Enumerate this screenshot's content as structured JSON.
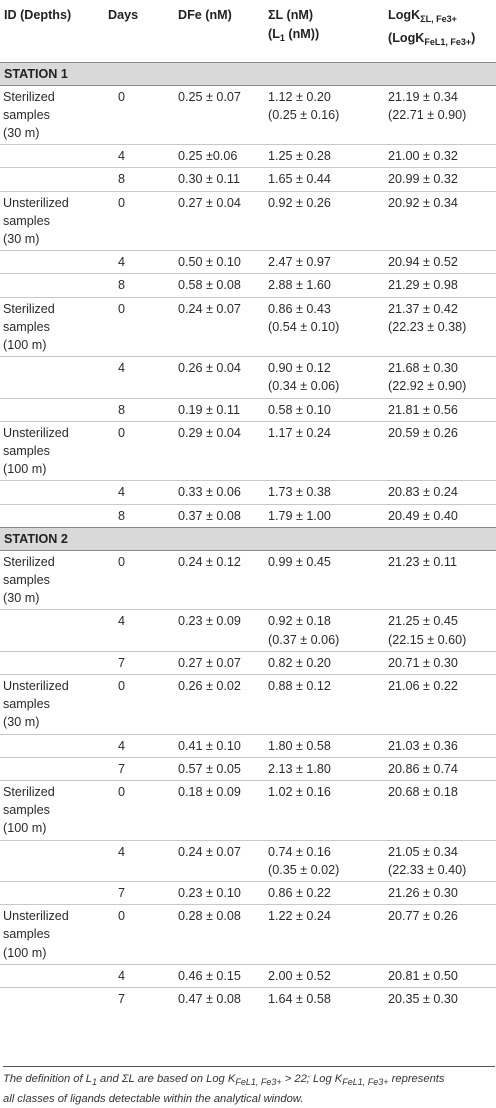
{
  "header": {
    "col_id": "ID (Depths)",
    "col_days": "Days",
    "col_dfe": "DFe (nM)",
    "col_sl_line1": "ΣL (nM)",
    "col_sl_line2_pre": "(L",
    "col_sl_line2_sub": "1",
    "col_sl_line2_post": " (nM))",
    "col_k_line1_pre": "LogK",
    "col_k_line1_sub": "ΣL, Fe3+",
    "col_k_line2_pre": "(LogK",
    "col_k_line2_sub": "FeL1, Fe3+",
    "col_k_line2_post": ")"
  },
  "stations": [
    {
      "name": "STATION 1",
      "groups": [
        {
          "id_lines": [
            "Sterilized",
            "samples",
            "(30 m)"
          ],
          "rows": [
            {
              "day": "0",
              "dfe": "0.25 ± 0.07",
              "sl": [
                "1.12 ± 0.20",
                "(0.25 ± 0.16)"
              ],
              "k": [
                "21.19 ± 0.34",
                "(22.71 ± 0.90)"
              ]
            },
            {
              "day": "4",
              "dfe": "0.25 ±0.06",
              "sl": [
                "1.25 ± 0.28"
              ],
              "k": [
                "21.00 ± 0.32"
              ]
            },
            {
              "day": "8",
              "dfe": "0.30 ± 0.11",
              "sl": [
                "1.65 ± 0.44"
              ],
              "k": [
                "20.99 ± 0.32"
              ]
            }
          ]
        },
        {
          "id_lines": [
            "Unsterilized",
            "samples",
            "(30 m)"
          ],
          "rows": [
            {
              "day": "0",
              "dfe": "0.27 ± 0.04",
              "sl": [
                "0.92 ± 0.26"
              ],
              "k": [
                "20.92 ± 0.34"
              ]
            },
            {
              "day": "4",
              "dfe": "0.50 ± 0.10",
              "sl": [
                "2.47 ± 0.97"
              ],
              "k": [
                "20.94 ± 0.52"
              ]
            },
            {
              "day": "8",
              "dfe": "0.58 ± 0.08",
              "sl": [
                "2.88 ± 1.60"
              ],
              "k": [
                "21.29 ± 0.98"
              ]
            }
          ]
        },
        {
          "id_lines": [
            "Sterilized",
            "samples",
            "(100 m)"
          ],
          "rows": [
            {
              "day": "0",
              "dfe": "0.24 ± 0.07",
              "sl": [
                "0.86 ± 0.43",
                "(0.54 ± 0.10)"
              ],
              "k": [
                "21.37 ± 0.42",
                "(22.23 ± 0.38)"
              ]
            },
            {
              "day": "4",
              "dfe": "0.26 ± 0.04",
              "sl": [
                "0.90 ± 0.12",
                "(0.34 ± 0.06)"
              ],
              "k": [
                "21.68 ± 0.30",
                "(22.92 ± 0.90)"
              ]
            },
            {
              "day": "8",
              "dfe": "0.19 ± 0.11",
              "sl": [
                "0.58 ± 0.10"
              ],
              "k": [
                "21.81 ± 0.56"
              ]
            }
          ]
        },
        {
          "id_lines": [
            "Unsterilized",
            "samples",
            "(100 m)"
          ],
          "rows": [
            {
              "day": "0",
              "dfe": "0.29 ± 0.04",
              "sl": [
                "1.17 ± 0.24"
              ],
              "k": [
                "20.59 ± 0.26"
              ]
            },
            {
              "day": "4",
              "dfe": "0.33 ± 0.06",
              "sl": [
                "1.73 ± 0.38"
              ],
              "k": [
                "20.83 ± 0.24"
              ]
            },
            {
              "day": "8",
              "dfe": "0.37 ± 0.08",
              "sl": [
                "1.79 ± 1.00"
              ],
              "k": [
                "20.49 ± 0.40"
              ]
            }
          ]
        }
      ]
    },
    {
      "name": "STATION 2",
      "groups": [
        {
          "id_lines": [
            "Sterilized",
            "samples",
            "(30 m)"
          ],
          "rows": [
            {
              "day": "0",
              "dfe": "0.24 ± 0.12",
              "sl": [
                "0.99 ± 0.45"
              ],
              "k": [
                "21.23 ± 0.11"
              ]
            },
            {
              "day": "4",
              "dfe": "0.23 ± 0.09",
              "sl": [
                "0.92 ± 0.18",
                "(0.37 ± 0.06)"
              ],
              "k": [
                "21.25 ± 0.45",
                "(22.15 ± 0.60)"
              ]
            },
            {
              "day": "7",
              "dfe": "0.27 ± 0.07",
              "sl": [
                "0.82 ± 0.20"
              ],
              "k": [
                "20.71 ± 0.30"
              ]
            }
          ]
        },
        {
          "id_lines": [
            "Unsterilized",
            "samples",
            "(30 m)"
          ],
          "rows": [
            {
              "day": "0",
              "dfe": "0.26 ± 0.02",
              "sl": [
                "0.88 ± 0.12"
              ],
              "k": [
                "21.06 ± 0.22"
              ]
            },
            {
              "day": "4",
              "dfe": "0.41 ± 0.10",
              "sl": [
                "1.80 ± 0.58"
              ],
              "k": [
                "21.03 ± 0.36"
              ]
            },
            {
              "day": "7",
              "dfe": "0.57 ± 0.05",
              "sl": [
                "2.13 ± 1.80"
              ],
              "k": [
                "20.86 ± 0.74"
              ]
            }
          ]
        },
        {
          "id_lines": [
            "Sterilized",
            "samples",
            "(100 m)"
          ],
          "rows": [
            {
              "day": "0",
              "dfe": "0.18 ± 0.09",
              "sl": [
                "1.02 ± 0.16"
              ],
              "k": [
                "20.68 ± 0.18"
              ]
            },
            {
              "day": "4",
              "dfe": "0.24 ± 0.07",
              "sl": [
                "0.74 ± 0.16",
                "(0.35 ± 0.02)"
              ],
              "k": [
                "21.05 ± 0.34",
                "(22.33 ± 0.40)"
              ]
            },
            {
              "day": "7",
              "dfe": "0.23 ± 0.10",
              "sl": [
                "0.86 ± 0.22"
              ],
              "k": [
                "21.26 ± 0.30"
              ]
            }
          ]
        },
        {
          "id_lines": [
            "Unsterilized",
            "samples",
            "(100 m)"
          ],
          "rows": [
            {
              "day": "0",
              "dfe": "0.28 ± 0.08",
              "sl": [
                "1.22 ± 0.24"
              ],
              "k": [
                "20.77 ± 0.26"
              ]
            },
            {
              "day": "4",
              "dfe": "0.46 ± 0.15",
              "sl": [
                "2.00 ± 0.52"
              ],
              "k": [
                "20.81 ± 0.50"
              ]
            },
            {
              "day": "7",
              "dfe": "0.47 ± 0.08",
              "sl": [
                "1.64 ± 0.58"
              ],
              "k": [
                "20.35 ± 0.30"
              ]
            }
          ]
        }
      ]
    }
  ],
  "footnote": {
    "line1": "The definition of L1 and ΣL are based on Log KFeL1, Fe3+ > 22; Log KFeL1, Fe3+ represents",
    "line2": "all classes of ligands detectable within the analytical window."
  }
}
